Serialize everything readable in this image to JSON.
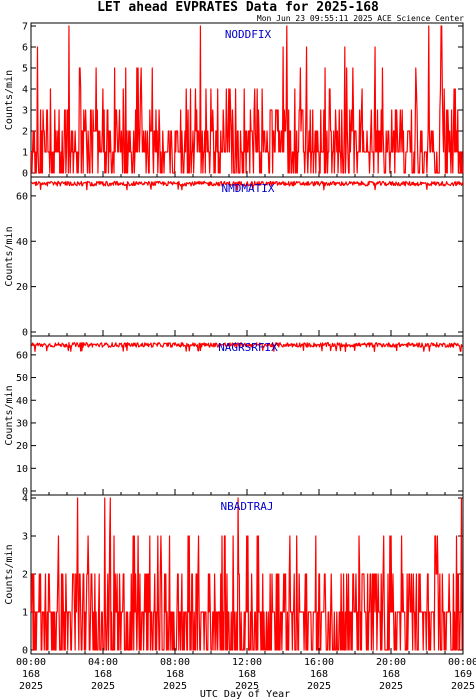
{
  "header": {
    "title": "LET ahead EVPRATES Data for 2025-168",
    "timestamp": "Mon Jun 23 09:55:11 2025 ACE Science Center"
  },
  "xaxis": {
    "label": "UTC Day of Year",
    "ticks": [
      {
        "time": "00:00",
        "day": "168",
        "year": "2025"
      },
      {
        "time": "04:00",
        "day": "168",
        "year": "2025"
      },
      {
        "time": "08:00",
        "day": "168",
        "year": "2025"
      },
      {
        "time": "12:00",
        "day": "168",
        "year": "2025"
      },
      {
        "time": "16:00",
        "day": "168",
        "year": "2025"
      },
      {
        "time": "20:00",
        "day": "168",
        "year": "2025"
      },
      {
        "time": "00:00",
        "day": "169",
        "year": "2025"
      }
    ]
  },
  "colors": {
    "series": "#ff0000",
    "series_label": "#0000cc",
    "axes": "#000000",
    "background": "#ffffff"
  },
  "chart_data": [
    {
      "type": "line",
      "name": "NODDFIX",
      "ylabel": "Counts/min",
      "ylim": [
        0,
        7
      ],
      "yticks": [
        0,
        1,
        2,
        3,
        4,
        5,
        6,
        7
      ],
      "xlim_hours": [
        0,
        24
      ],
      "typical_range": [
        0,
        3
      ],
      "peak_value": 7,
      "peak_hours": [
        2.1,
        9.4,
        14.2,
        22.1,
        22.8
      ],
      "grid": false
    },
    {
      "type": "line",
      "name": "NMDMATIX",
      "ylabel": "Counts/min",
      "ylim": [
        0,
        67
      ],
      "yticks": [
        0,
        20,
        40,
        60
      ],
      "xlim_hours": [
        0,
        24
      ],
      "typical_range": [
        63,
        67
      ],
      "grid": false
    },
    {
      "type": "line",
      "name": "NAGRSRFIX",
      "ylabel": "Counts/min",
      "ylim": [
        0,
        67
      ],
      "yticks": [
        0,
        10,
        20,
        30,
        40,
        50,
        60
      ],
      "xlim_hours": [
        0,
        24
      ],
      "typical_range": [
        62,
        66
      ],
      "grid": false
    },
    {
      "type": "line",
      "name": "NBADTRAJ",
      "ylabel": "Counts/min",
      "ylim": [
        0,
        4
      ],
      "yticks": [
        0,
        1,
        2,
        3,
        4
      ],
      "xlim_hours": [
        0,
        24
      ],
      "typical_range": [
        0,
        2
      ],
      "peak_value": 4,
      "peak_hours": [
        2.6,
        4.1,
        4.4,
        11.5,
        23.9
      ],
      "grid": false
    }
  ]
}
